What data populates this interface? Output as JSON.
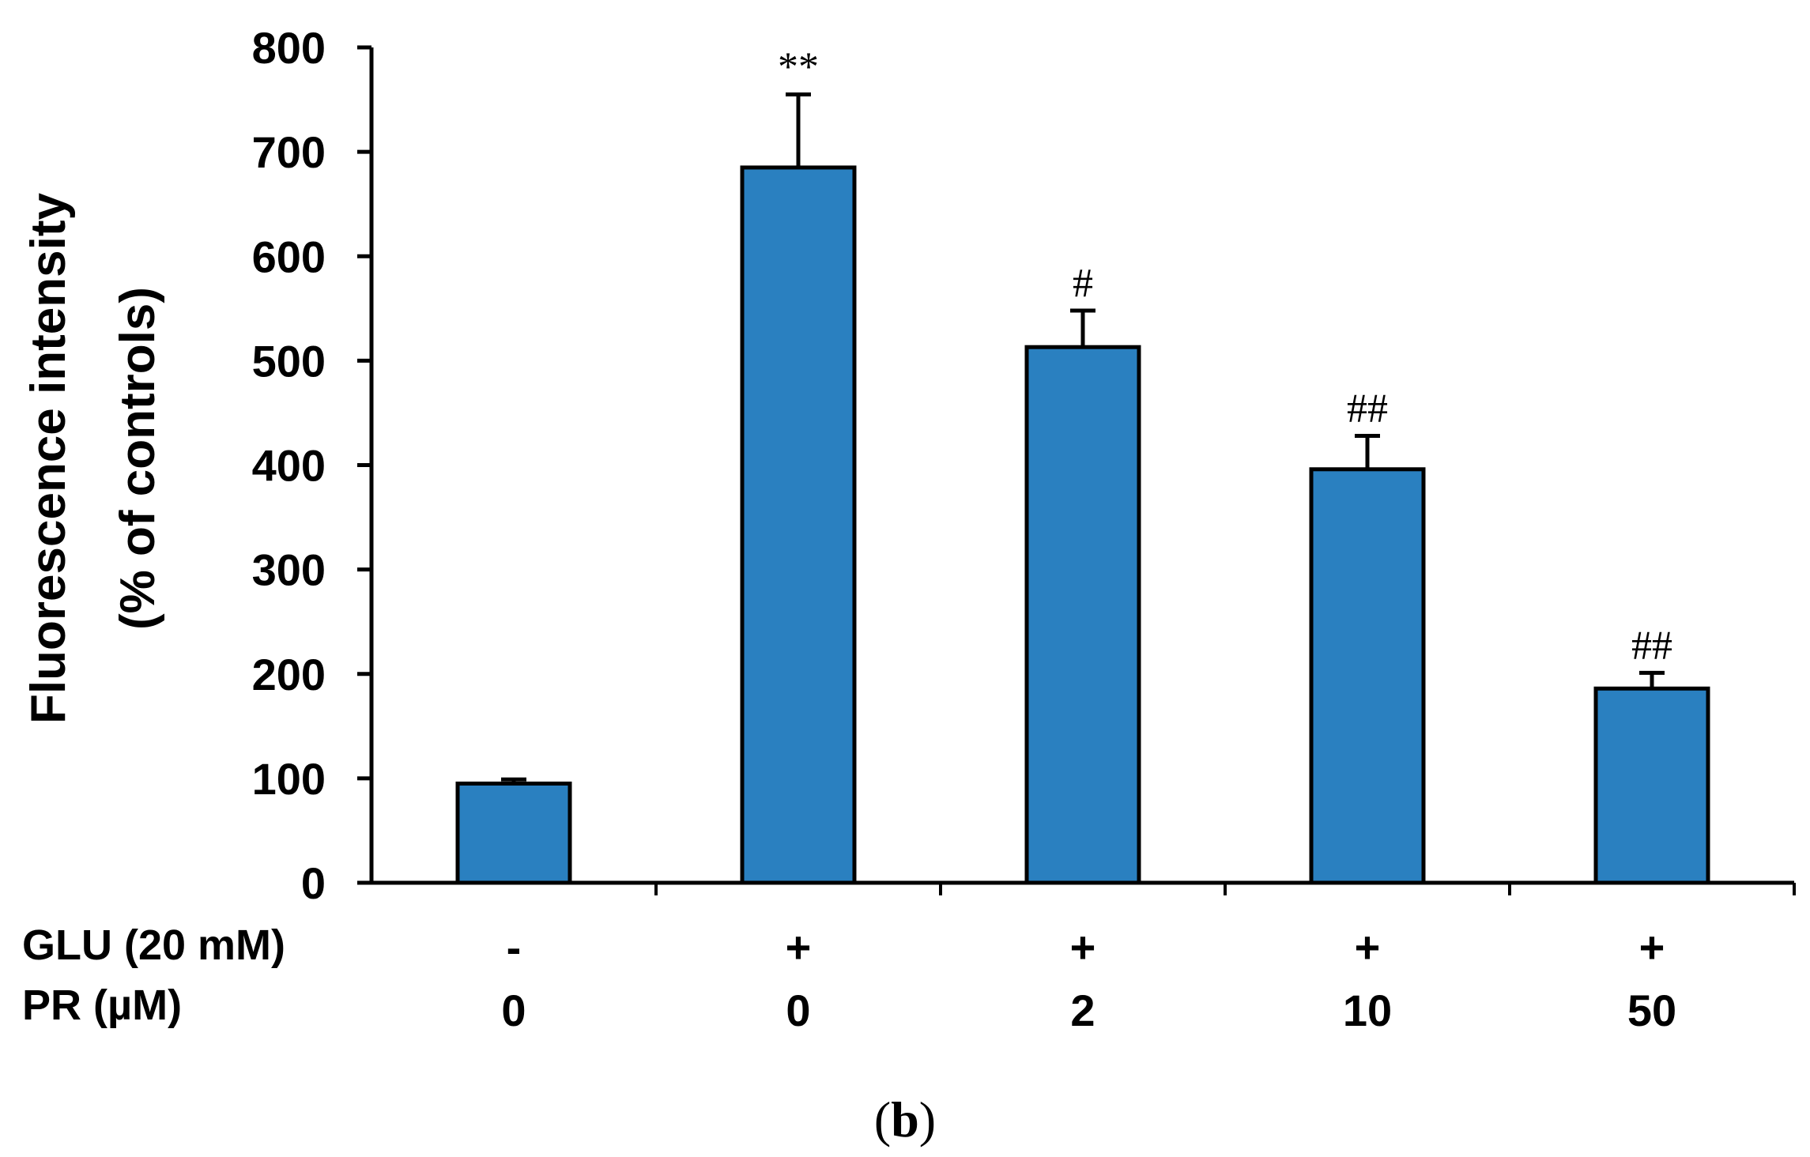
{
  "chart_data": {
    "type": "bar",
    "categories": [
      "0",
      "0",
      "2",
      "10",
      "50"
    ],
    "ylabel_line1": "Fluorescence  intensity",
    "ylabel_line2": "(% of controls)",
    "ylim": [
      0,
      800
    ],
    "yticks": [
      0,
      100,
      200,
      300,
      400,
      500,
      600,
      700,
      800
    ],
    "grid": false,
    "bar_color": "#2a80c0",
    "series": [
      {
        "values": [
          95,
          685,
          513,
          396,
          186
        ],
        "errors": [
          4,
          70,
          35,
          32,
          15
        ]
      }
    ],
    "significance": [
      "",
      "**",
      "#",
      "##",
      "##"
    ],
    "rows": [
      {
        "label": "GLU (20 mM)",
        "values": [
          "-",
          "+",
          "+",
          "+",
          "+"
        ]
      },
      {
        "label": "PR (µM)",
        "values": [
          "0",
          "0",
          "2",
          "10",
          "50"
        ]
      }
    ],
    "panel_label": {
      "open": "(",
      "letter": "b",
      "close": ")"
    }
  }
}
